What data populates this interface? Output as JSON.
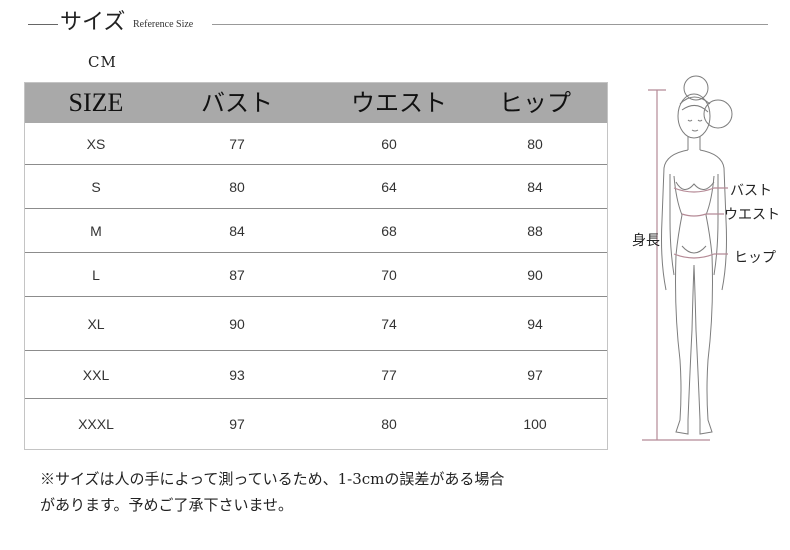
{
  "header": {
    "title": "サイズ",
    "subtitle": "Reference Size",
    "unit": "CM"
  },
  "table": {
    "columns": [
      "SIZE",
      "バスト",
      "ウエスト",
      "ヒップ"
    ],
    "rows": [
      [
        "XS",
        "77",
        "60",
        "80"
      ],
      [
        "S",
        "80",
        "64",
        "84"
      ],
      [
        "M",
        "84",
        "68",
        "88"
      ],
      [
        "L",
        "87",
        "70",
        "90"
      ],
      [
        "XL",
        "90",
        "74",
        "94"
      ],
      [
        "XXL",
        "93",
        "77",
        "97"
      ],
      [
        "XXXL",
        "97",
        "80",
        "100"
      ]
    ]
  },
  "figure": {
    "labels": {
      "height": "身長",
      "bust": "バスト",
      "waist": "ウエスト",
      "hip": "ヒップ"
    }
  },
  "note": {
    "line1": "※サイズは人の手によって測っているため、1-3cmの誤差がある場合",
    "line2": "があります。予めご了承下さいませ。"
  },
  "colors": {
    "header_band": "#a9a9a9",
    "measure_line": "#b58a96"
  }
}
